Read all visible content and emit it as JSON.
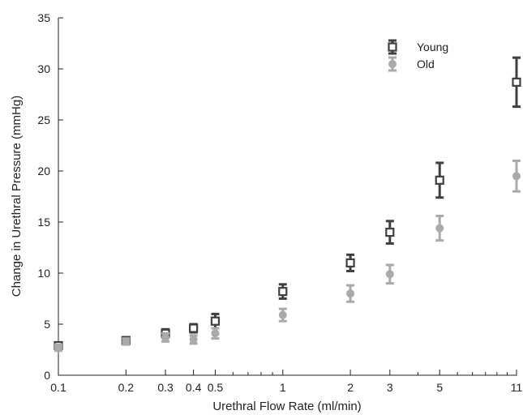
{
  "chart_data": {
    "type": "scatter",
    "xlabel": "Urethral Flow Rate (ml/min)",
    "ylabel": "Change in Urethral Pressure (mmHg)",
    "xscale": "log",
    "xlim": [
      0.1,
      11
    ],
    "ylim": [
      0,
      35
    ],
    "xticks": [
      0.1,
      0.2,
      0.3,
      0.4,
      0.5,
      1,
      2,
      3,
      5,
      11
    ],
    "xtick_labels": [
      "0.1",
      "0.2",
      "0.3",
      "0.4",
      "0.5",
      "1",
      "2",
      "3",
      "5",
      "11"
    ],
    "yticks": [
      0,
      5,
      10,
      15,
      20,
      25,
      30,
      35
    ],
    "ytick_labels": [
      "0",
      "5",
      "10",
      "15",
      "20",
      "25",
      "30",
      "35"
    ],
    "grid": false,
    "legend_position": "top-right",
    "error_bars": true,
    "series": [
      {
        "name": "Young",
        "marker": "square",
        "color": "#404040",
        "x": [
          0.1,
          0.2,
          0.3,
          0.4,
          0.5,
          1,
          2,
          3,
          5,
          11
        ],
        "y": [
          2.9,
          3.4,
          4.1,
          4.6,
          5.3,
          8.2,
          11.0,
          14.0,
          19.1,
          28.7
        ],
        "err": [
          0.3,
          0.3,
          0.4,
          0.4,
          0.7,
          0.7,
          0.8,
          1.1,
          1.7,
          2.4
        ]
      },
      {
        "name": "Old",
        "marker": "circle",
        "color": "#aaaaaa",
        "x": [
          0.1,
          0.2,
          0.3,
          0.4,
          0.5,
          1,
          2,
          3,
          5,
          11
        ],
        "y": [
          2.7,
          3.3,
          3.7,
          3.5,
          4.1,
          5.9,
          8.0,
          9.9,
          14.4,
          19.5
        ],
        "err": [
          0.3,
          0.3,
          0.4,
          0.4,
          0.5,
          0.6,
          0.8,
          0.9,
          1.2,
          1.5
        ]
      }
    ]
  }
}
